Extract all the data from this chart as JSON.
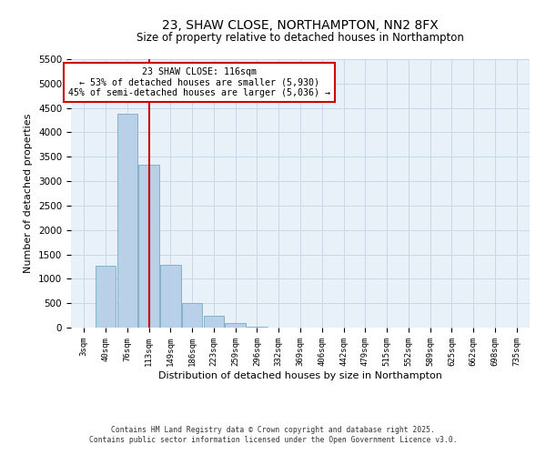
{
  "title": "23, SHAW CLOSE, NORTHAMPTON, NN2 8FX",
  "subtitle": "Size of property relative to detached houses in Northampton",
  "xlabel": "Distribution of detached houses by size in Northampton",
  "ylabel": "Number of detached properties",
  "bar_categories": [
    "3sqm",
    "40sqm",
    "76sqm",
    "113sqm",
    "149sqm",
    "186sqm",
    "223sqm",
    "259sqm",
    "296sqm",
    "332sqm",
    "369sqm",
    "406sqm",
    "442sqm",
    "479sqm",
    "515sqm",
    "552sqm",
    "589sqm",
    "625sqm",
    "662sqm",
    "698sqm",
    "735sqm"
  ],
  "bar_values": [
    0,
    1270,
    4380,
    3330,
    1290,
    510,
    245,
    95,
    25,
    5,
    0,
    0,
    0,
    0,
    0,
    0,
    0,
    0,
    0,
    0,
    0
  ],
  "bar_color": "#b8d0e8",
  "bar_edge_color": "#7aaac8",
  "vline_x": 3,
  "vline_color": "#cc0000",
  "annotation_title": "23 SHAW CLOSE: 116sqm",
  "annotation_line1": "← 53% of detached houses are smaller (5,930)",
  "annotation_line2": "45% of semi-detached houses are larger (5,036) →",
  "annotation_box_color": "#ffffff",
  "annotation_box_edge": "#cc0000",
  "ylim": [
    0,
    5500
  ],
  "yticks": [
    0,
    500,
    1000,
    1500,
    2000,
    2500,
    3000,
    3500,
    4000,
    4500,
    5000,
    5500
  ],
  "grid_color": "#c8d8e8",
  "background_color": "#e8f0f8",
  "footer_line1": "Contains HM Land Registry data © Crown copyright and database right 2025.",
  "footer_line2": "Contains public sector information licensed under the Open Government Licence v3.0."
}
